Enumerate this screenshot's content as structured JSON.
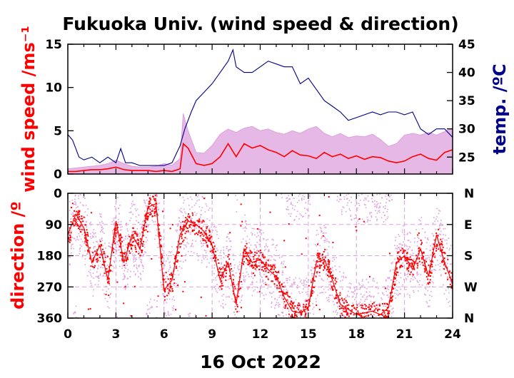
{
  "chart_data": [
    {
      "type": "line",
      "title": "Fukuoka Univ. (wind speed & direction)",
      "xlabel": "",
      "ylabel": "wind speed /ms⁻¹",
      "ylabel_right": "temp. /ºC",
      "xlim": [
        0,
        24
      ],
      "ylim": [
        0,
        15
      ],
      "ylim_right": [
        22,
        45
      ],
      "xticks": [
        "0",
        "3",
        "6",
        "9",
        "12",
        "15",
        "18",
        "21",
        "24"
      ],
      "yticks": [
        "0",
        "5",
        "10",
        "15"
      ],
      "yticks_right": [
        "25",
        "30",
        "35",
        "40",
        "45"
      ],
      "grid": false,
      "series": [
        {
          "role": "wind speed (red)",
          "color": "#ff0000",
          "x": [
            0,
            0.5,
            1,
            1.5,
            2,
            2.5,
            3,
            3.5,
            4,
            4.5,
            5,
            5.5,
            6,
            6.5,
            7,
            7.2,
            7.5,
            8,
            8.5,
            9,
            9.5,
            10,
            10.5,
            11,
            11.5,
            12,
            12.5,
            13,
            13.5,
            14,
            14.5,
            15,
            15.5,
            16,
            16.5,
            17,
            17.5,
            18,
            18.5,
            19,
            19.5,
            20,
            20.5,
            21,
            21.5,
            22,
            22.5,
            23,
            23.5,
            24
          ],
          "y": [
            0.3,
            0.3,
            0.4,
            0.5,
            0.5,
            0.6,
            0.8,
            0.5,
            0.4,
            0.4,
            0.4,
            0.3,
            0.4,
            0.3,
            0.6,
            3.5,
            3.0,
            1.2,
            1.0,
            1.2,
            2.0,
            3.5,
            2.0,
            3.5,
            3.0,
            3.3,
            2.8,
            2.5,
            2.0,
            2.7,
            2.2,
            2.1,
            1.8,
            2.5,
            2.0,
            2.3,
            1.8,
            2.1,
            1.7,
            2.0,
            1.9,
            1.5,
            1.3,
            1.5,
            2.0,
            2.3,
            1.8,
            1.6,
            2.5,
            2.8
          ]
        },
        {
          "role": "wind gust envelope (pink)",
          "color": "#dda0dd",
          "x": [
            0,
            0.5,
            1,
            1.5,
            2,
            2.5,
            3,
            3.5,
            4,
            4.5,
            5,
            5.5,
            6,
            6.5,
            7,
            7.2,
            7.5,
            8,
            8.5,
            9,
            9.5,
            10,
            10.5,
            11,
            11.5,
            12,
            12.5,
            13,
            13.5,
            14,
            14.5,
            15,
            15.5,
            16,
            16.5,
            17,
            17.5,
            18,
            18.5,
            19,
            19.5,
            20,
            20.5,
            21,
            21.5,
            22,
            22.5,
            23,
            23.5,
            24
          ],
          "y": [
            0.6,
            0.7,
            0.8,
            0.9,
            1.0,
            1.2,
            1.6,
            1.2,
            0.9,
            0.8,
            0.8,
            0.9,
            1.2,
            1.0,
            1.8,
            7.0,
            5.0,
            2.5,
            2.4,
            3.3,
            4.6,
            5.2,
            4.8,
            5.3,
            5.5,
            5.0,
            5.2,
            4.8,
            4.6,
            5.0,
            4.7,
            5.2,
            5.5,
            4.7,
            4.3,
            4.7,
            4.2,
            4.4,
            4.3,
            4.6,
            4.0,
            3.2,
            3.5,
            4.5,
            4.7,
            4.5,
            4.8,
            4.5,
            4.9,
            5.3
          ]
        },
        {
          "role": "temperature (blue, right axis)",
          "color": "#00008b",
          "axis": "right",
          "x": [
            0,
            0.3,
            0.7,
            1,
            1.5,
            2,
            2.5,
            3,
            3.3,
            3.6,
            4,
            4.5,
            5,
            5.5,
            6,
            6.5,
            7,
            7.3,
            7.7,
            8,
            8.5,
            9,
            9.5,
            10,
            10.3,
            10.5,
            11,
            11.5,
            12,
            12.5,
            13,
            13.5,
            14,
            14.5,
            15,
            15.5,
            16,
            16.5,
            17,
            17.5,
            18,
            18.5,
            19,
            19.5,
            20,
            20.5,
            21,
            21.5,
            22,
            22.5,
            23,
            23.5,
            24
          ],
          "y": [
            29,
            28,
            25,
            24.5,
            25,
            24,
            25,
            24,
            26.5,
            24,
            24,
            23.5,
            23.5,
            23.5,
            23.5,
            24,
            27,
            30,
            33,
            35,
            36.5,
            38,
            40,
            42,
            44,
            41,
            40,
            40,
            41,
            42,
            41.5,
            41,
            41,
            38,
            39,
            37,
            35,
            34,
            33,
            31.5,
            32,
            32.5,
            33,
            32.5,
            33,
            33,
            32.5,
            33,
            30,
            29,
            30,
            30,
            28.5
          ]
        }
      ]
    },
    {
      "type": "scatter",
      "xlabel": "16 Oct 2022",
      "ylabel": "direction /º",
      "xlim": [
        0,
        24
      ],
      "ylim": [
        360,
        0
      ],
      "xticks": [
        "0",
        "3",
        "6",
        "9",
        "12",
        "15",
        "18",
        "21",
        "24"
      ],
      "yticks": [
        "0",
        "90",
        "180",
        "270",
        "360"
      ],
      "yticks_right": [
        "N",
        "E",
        "S",
        "W",
        "N"
      ],
      "grid": true,
      "series": [
        {
          "role": "wind direction (red)",
          "color": "#ff0000",
          "x": [
            0,
            0.5,
            1,
            1.5,
            2,
            2.5,
            3,
            3.5,
            4,
            4.5,
            5,
            5.5,
            6,
            6.5,
            7,
            7.5,
            8,
            8.5,
            9,
            9.5,
            10,
            10.5,
            11,
            11.5,
            12,
            12.5,
            13,
            13.5,
            14,
            14.5,
            15,
            15.5,
            16,
            16.5,
            17,
            17.5,
            18,
            18.5,
            19,
            19.5,
            20,
            20.5,
            21,
            21.5,
            22,
            22.5,
            23,
            23.5,
            24
          ],
          "y": [
            120,
            60,
            100,
            200,
            150,
            250,
            80,
            200,
            120,
            160,
            40,
            30,
            280,
            250,
            120,
            80,
            90,
            110,
            150,
            250,
            200,
            320,
            160,
            200,
            190,
            220,
            240,
            300,
            340,
            345,
            330,
            200,
            190,
            250,
            320,
            335,
            350,
            345,
            340,
            350,
            330,
            200,
            180,
            220,
            160,
            240,
            120,
            200,
            260
          ]
        }
      ]
    }
  ]
}
